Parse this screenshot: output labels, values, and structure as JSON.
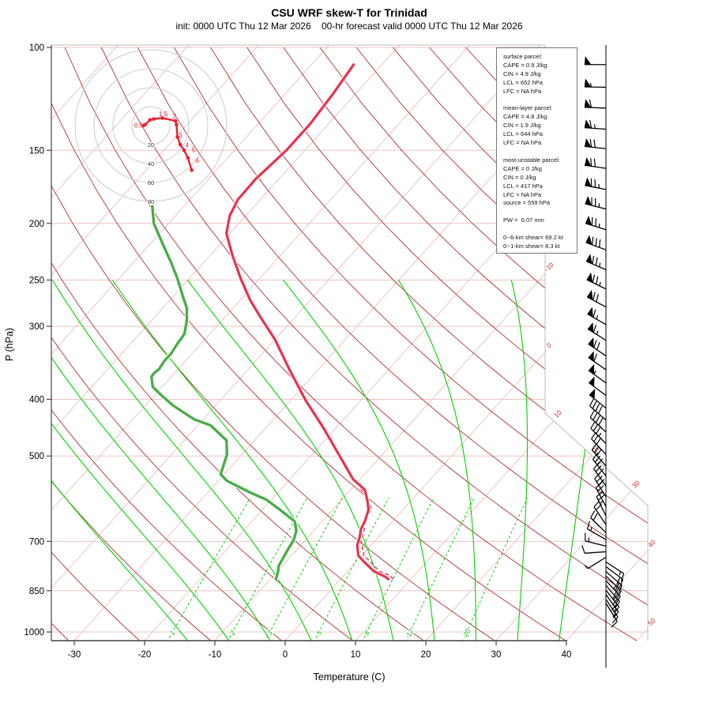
{
  "header": {
    "title": "CSU WRF skew-T for Trinidad",
    "subtitle": "init: 0000 UTC Thu 12 Mar 2026    00-hr forecast valid 0000 UTC Thu 12 Mar 2026"
  },
  "axes": {
    "x_label": "Temperature (C)",
    "y_label": "P (hPa)",
    "x_ticks": [
      -30,
      -20,
      -10,
      0,
      10,
      20,
      30,
      40
    ],
    "y_ticks": [
      100,
      150,
      200,
      250,
      300,
      400,
      500,
      700,
      850,
      1000
    ],
    "isotherm_edge_labels": [
      -10,
      0,
      10,
      20,
      30,
      40,
      50
    ],
    "mixing_ratio_labels": [
      1,
      2,
      3,
      5,
      8,
      12,
      20
    ]
  },
  "info_panel": {
    "lines": [
      "surface parcel:",
      "CAPE = 0.9 J/kg",
      "CIN = 4.9 J/kg",
      "LCL = 652 hPa",
      "LFC = NA hPa",
      "",
      "mean-layer parcel:",
      "CAPE = 4.8 J/kg",
      "CIN = 1.9 J/kg",
      "LCL = 644 hPa",
      "LFC = NA hPa",
      "",
      "most-unstable parcel:",
      "CAPE = 0 J/kg",
      "CIN = 0 J/kg",
      "LCL = 417 hPa",
      "LFC = NA hPa",
      "source = 559 hPa",
      "",
      "PW =  6.07 mm",
      "",
      "0--6-km shear= 69.2 kt",
      "0--1-km shear= 8.3 kt"
    ]
  },
  "hodograph": {
    "ring_labels_kt": [
      20,
      40,
      60,
      80
    ],
    "trace_uv_kt": [
      [
        -8,
        0
      ],
      [
        -6,
        1
      ],
      [
        -1,
        6
      ],
      [
        3,
        7
      ],
      [
        12,
        8
      ],
      [
        26,
        5
      ],
      [
        27,
        1
      ],
      [
        28,
        -12
      ],
      [
        31,
        -20
      ],
      [
        35,
        -26
      ],
      [
        39,
        -34
      ],
      [
        43,
        -47
      ]
    ],
    "point_labels": [
      {
        "label": "0.5",
        "u": -13,
        "v": -2
      },
      {
        "label": "1.5",
        "u": 13,
        "v": 10
      },
      {
        "label": "2",
        "u": 25,
        "v": 8
      },
      {
        "label": "3",
        "u": 31,
        "v": -13
      },
      {
        "label": "4",
        "u": 38,
        "v": -23
      },
      {
        "label": "5",
        "u": 45,
        "v": -28
      },
      {
        "label": "6",
        "u": 49,
        "v": -39
      }
    ]
  },
  "chart_data": {
    "type": "line",
    "title": "CSU WRF skew-T for Trinidad",
    "xlabel": "Temperature (C)",
    "ylabel": "P (hPa)",
    "x_range_c": [
      -35,
      50
    ],
    "p_range_hpa": [
      100,
      1050
    ],
    "grid": "skew-t log-p: isobars, 45-deg isotherms, dry adiabats, moist adiabats, mixing-ratio lines",
    "series": [
      {
        "name": "temperature",
        "units": [
          "hPa",
          "C"
        ],
        "points": [
          [
            107,
            -64.0
          ],
          [
            120,
            -63.2
          ],
          [
            135,
            -62.6
          ],
          [
            150,
            -62.6
          ],
          [
            168,
            -63.3
          ],
          [
            182,
            -63.2
          ],
          [
            194,
            -62.3
          ],
          [
            208,
            -60.5
          ],
          [
            227,
            -56.8
          ],
          [
            249,
            -52.6
          ],
          [
            271,
            -48.5
          ],
          [
            290,
            -44.8
          ],
          [
            316,
            -40.0
          ],
          [
            355,
            -34.2
          ],
          [
            402,
            -27.8
          ],
          [
            450,
            -21.5
          ],
          [
            500,
            -15.9
          ],
          [
            548,
            -11.0
          ],
          [
            571,
            -8.0
          ],
          [
            595,
            -6.3
          ],
          [
            618,
            -4.9
          ],
          [
            645,
            -4.0
          ],
          [
            667,
            -3.5
          ],
          [
            690,
            -2.6
          ],
          [
            710,
            -2.0
          ],
          [
            740,
            -0.5
          ],
          [
            756,
            0.9
          ],
          [
            787,
            3.7
          ],
          [
            804,
            6.0
          ],
          [
            812,
            6.8
          ]
        ]
      },
      {
        "name": "dewpoint",
        "units": [
          "hPa",
          "C"
        ],
        "points": [
          [
            187,
            -74.5
          ],
          [
            200,
            -72.1
          ],
          [
            216,
            -68.4
          ],
          [
            234,
            -64.5
          ],
          [
            249,
            -61.6
          ],
          [
            268,
            -58.4
          ],
          [
            279,
            -56.6
          ],
          [
            293,
            -55.0
          ],
          [
            309,
            -53.6
          ],
          [
            323,
            -53.3
          ],
          [
            333,
            -53.0
          ],
          [
            344,
            -53.0
          ],
          [
            355,
            -52.7
          ],
          [
            361,
            -52.9
          ],
          [
            366,
            -52.8
          ],
          [
            381,
            -51.3
          ],
          [
            397,
            -48.4
          ],
          [
            410,
            -46.0
          ],
          [
            421,
            -43.7
          ],
          [
            433,
            -41.2
          ],
          [
            443,
            -38.2
          ],
          [
            470,
            -34.0
          ],
          [
            497,
            -32.1
          ],
          [
            537,
            -30.5
          ],
          [
            551,
            -28.8
          ],
          [
            577,
            -24.0
          ],
          [
            594,
            -20.7
          ],
          [
            618,
            -17.5
          ],
          [
            647,
            -13.9
          ],
          [
            671,
            -12.5
          ],
          [
            695,
            -11.7
          ],
          [
            728,
            -11.2
          ],
          [
            771,
            -10.5
          ],
          [
            787,
            -9.9
          ],
          [
            812,
            -9.2
          ]
        ]
      },
      {
        "name": "parcel-trace",
        "units": [
          "hPa",
          "C"
        ],
        "points": [
          [
            812,
            7.5
          ],
          [
            800,
            6.5
          ],
          [
            787,
            4.5
          ],
          [
            756,
            1.8
          ],
          [
            740,
            0.3
          ],
          [
            710,
            -1.3
          ],
          [
            695,
            -2.2
          ],
          [
            667,
            -3.0
          ],
          [
            644,
            -4.2
          ],
          [
            618,
            -4.5
          ],
          [
            590,
            -6.5
          ],
          [
            571,
            -8.5
          ],
          [
            566,
            -9.0
          ]
        ]
      }
    ],
    "wind_barbs": {
      "format": [
        "pressure_hpa",
        "staff_angle_deg",
        "pennants_50kt",
        "full_10kt",
        "half_5kt"
      ],
      "barbs": [
        [
          107,
          180,
          1,
          0,
          0
        ],
        [
          117,
          179,
          1,
          0,
          1
        ],
        [
          127,
          178,
          1,
          1,
          0
        ],
        [
          138,
          176,
          1,
          1,
          1
        ],
        [
          149,
          174,
          1,
          2,
          0
        ],
        [
          161,
          172,
          1,
          2,
          0
        ],
        [
          175,
          169,
          1,
          2,
          1
        ],
        [
          189,
          166,
          1,
          2,
          1
        ],
        [
          205,
          163,
          1,
          2,
          1
        ],
        [
          222,
          160,
          1,
          3,
          0
        ],
        [
          240,
          157,
          1,
          2,
          1
        ],
        [
          259,
          154,
          1,
          2,
          1
        ],
        [
          278,
          152,
          1,
          2,
          0
        ],
        [
          298,
          150,
          1,
          1,
          1
        ],
        [
          317,
          148,
          1,
          1,
          1
        ],
        [
          337,
          146,
          1,
          2,
          0
        ],
        [
          356,
          145,
          1,
          1,
          0
        ],
        [
          375,
          144,
          1,
          0,
          1
        ],
        [
          394,
          143,
          1,
          0,
          0
        ],
        [
          414,
          141,
          1,
          0,
          0
        ],
        [
          434,
          139,
          0,
          4,
          0
        ],
        [
          455,
          137,
          0,
          4,
          0
        ],
        [
          476,
          135,
          0,
          3,
          1
        ],
        [
          497,
          133,
          0,
          3,
          0
        ],
        [
          520,
          131,
          0,
          3,
          0
        ],
        [
          541,
          128,
          0,
          3,
          0
        ],
        [
          563,
          125,
          0,
          3,
          0
        ],
        [
          587,
          122,
          0,
          3,
          0
        ],
        [
          610,
          118,
          0,
          2,
          1
        ],
        [
          633,
          116,
          0,
          2,
          1
        ],
        [
          655,
          124,
          0,
          2,
          0
        ],
        [
          676,
          136,
          0,
          2,
          0
        ],
        [
          695,
          150,
          0,
          1,
          1
        ],
        [
          713,
          166,
          0,
          1,
          1
        ],
        [
          729,
          184,
          0,
          1,
          0
        ],
        [
          745,
          212,
          0,
          0,
          1
        ],
        [
          759,
          327,
          0,
          1,
          1
        ],
        [
          773,
          323,
          0,
          2,
          0
        ],
        [
          788,
          319,
          0,
          2,
          0
        ],
        [
          802,
          316,
          0,
          2,
          1
        ],
        [
          817,
          313,
          0,
          2,
          0
        ],
        [
          832,
          310,
          0,
          2,
          1
        ],
        [
          848,
          308,
          0,
          2,
          0
        ],
        [
          863,
          306,
          0,
          1,
          1
        ],
        [
          879,
          304,
          0,
          1,
          1
        ],
        [
          893,
          302,
          0,
          1,
          0
        ]
      ]
    }
  },
  "colors": {
    "temperature": "#e8324e",
    "dewpoint": "#4aad4a",
    "parcel": "#e8324e",
    "isotherm_pink": "#f0c3c3",
    "dry_adiabat": "#ab3232",
    "moist_green": "#00d400",
    "mixing_label_green": "#00b400",
    "edge_label_red": "#cc3333",
    "hodo_ring": "#cccccc",
    "hodo_trace": "#ed1f2f",
    "barb": "#000000",
    "axis": "#444444",
    "border_grey": "#bbbbbb"
  }
}
